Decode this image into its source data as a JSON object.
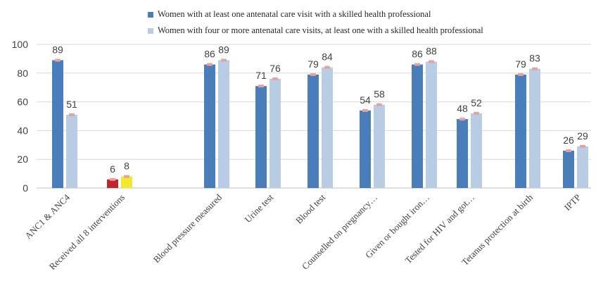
{
  "chart_data": {
    "type": "bar",
    "title": "",
    "xlabel": "",
    "ylabel": "",
    "ylim": [
      0,
      100
    ],
    "yticks": [
      0,
      20,
      40,
      60,
      80,
      100
    ],
    "grid": true,
    "legend_position": "top",
    "categories": [
      "ANC1 & ANC4",
      "Received all 8 interventions",
      "Blood pressure measured",
      "Urine test",
      "Blood test",
      "Counselled on pregnancy…",
      "Given or bought iron…",
      "Tested for HIV and got…",
      "Tetanus protection at birth",
      "IPTP"
    ],
    "series": [
      {
        "name": "Women with at least one antenatal care visit with a skilled health professional",
        "color": "#4a7ebb",
        "values": [
          89,
          6,
          86,
          71,
          79,
          54,
          86,
          48,
          79,
          26
        ]
      },
      {
        "name": "Women with four or more antenatal care visits, at least one with a skilled health professional",
        "color": "#b8cce4",
        "values": [
          51,
          8,
          89,
          76,
          84,
          58,
          88,
          52,
          83,
          29
        ]
      }
    ],
    "highlight_colors": {
      "received_all_8_series1": "#c0282d",
      "received_all_8_series2": "#f2e92e"
    },
    "data_labels": [
      [
        "89",
        "51"
      ],
      [
        "6",
        "8"
      ],
      [
        "86",
        "89"
      ],
      [
        "71",
        "76"
      ],
      [
        "79",
        "84"
      ],
      [
        "54",
        "58"
      ],
      [
        "86",
        "88"
      ],
      [
        "48",
        "52"
      ],
      [
        "79",
        "83"
      ],
      [
        "26",
        "29"
      ]
    ],
    "error_marker_color": "#e8a0a0"
  }
}
